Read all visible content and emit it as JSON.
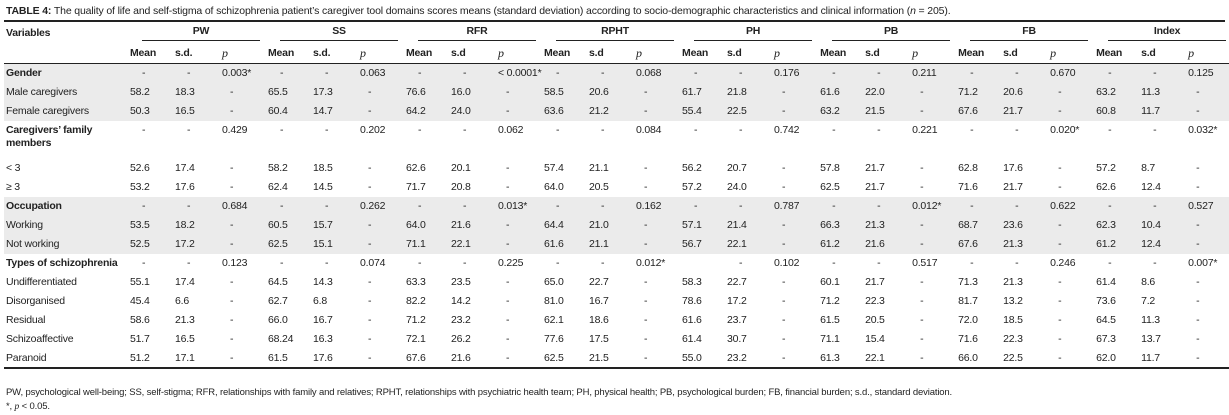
{
  "title": {
    "label": "TABLE 4:",
    "text": "The quality of life and self-stigma of schizophrenia patient’s caregiver tool domains scores means (standard deviation) according to socio-demographic characteristics and clinical information (",
    "n_symbol": "n",
    "n_value": " = 205)."
  },
  "header": {
    "variables": "Variables",
    "groups": [
      "PW",
      "SS",
      "RFR",
      "RPHT",
      "PH",
      "PB",
      "FB",
      "Index"
    ],
    "subcols": [
      [
        "Mean",
        "s.d.",
        "p"
      ],
      [
        "Mean",
        "s.d.",
        "p"
      ],
      [
        "Mean",
        "s.d",
        "p"
      ],
      [
        "Mean",
        "s.d",
        "p"
      ],
      [
        "Mean",
        "s.d",
        "p"
      ],
      [
        "Mean",
        "s.d",
        "p"
      ],
      [
        "Mean",
        "s.d",
        "p"
      ],
      [
        "Mean",
        "s.d",
        "p"
      ]
    ]
  },
  "rows": [
    {
      "label": "Gender",
      "category": true,
      "shade": true,
      "cells": [
        "-",
        "-",
        "0.003*",
        "-",
        "-",
        "0.063",
        "-",
        "-",
        "< 0.0001*",
        "-",
        "-",
        "0.068",
        "-",
        "-",
        "0.176",
        "-",
        "-",
        "0.211",
        "-",
        "-",
        "0.670",
        "-",
        "-",
        "0.125"
      ]
    },
    {
      "label": "Male caregivers",
      "category": false,
      "shade": true,
      "cells": [
        "58.2",
        "18.3",
        "-",
        "65.5",
        "17.3",
        "-",
        "76.6",
        "16.0",
        "-",
        "58.5",
        "20.6",
        "-",
        "61.7",
        "21.8",
        "-",
        "61.6",
        "22.0",
        "-",
        "71.2",
        "20.6",
        "-",
        "63.2",
        "11.3",
        "-"
      ]
    },
    {
      "label": "Female caregivers",
      "category": false,
      "shade": true,
      "cells": [
        "50.3",
        "16.5",
        "-",
        "60.4",
        "14.7",
        "-",
        "64.2",
        "24.0",
        "-",
        "63.6",
        "21.2",
        "-",
        "55.4",
        "22.5",
        "-",
        "63.2",
        "21.5",
        "-",
        "67.6",
        "21.7",
        "-",
        "60.8",
        "11.7",
        "-"
      ]
    },
    {
      "label": "Caregivers’ family members",
      "category": true,
      "shade": false,
      "cells": [
        "-",
        "-",
        "0.429",
        "-",
        "-",
        "0.202",
        "-",
        "-",
        "0.062",
        "-",
        "-",
        "0.084",
        "-",
        "-",
        "0.742",
        "-",
        "-",
        "0.221",
        "-",
        "-",
        "0.020*",
        "-",
        "-",
        "0.032*"
      ]
    },
    {
      "label": "< 3",
      "category": false,
      "shade": false,
      "cells": [
        "52.6",
        "17.4",
        "-",
        "58.2",
        "18.5",
        "-",
        "62.6",
        "20.1",
        "-",
        "57.4",
        "21.1",
        "-",
        "56.2",
        "20.7",
        "-",
        "57.8",
        "21.7",
        "-",
        "62.8",
        "17.6",
        "-",
        "57.2",
        "8.7",
        "-"
      ]
    },
    {
      "label": "≥ 3",
      "category": false,
      "shade": false,
      "cells": [
        "53.2",
        "17.6",
        "-",
        "62.4",
        "14.5",
        "-",
        "71.7",
        "20.8",
        "-",
        "64.0",
        "20.5",
        "-",
        "57.2",
        "24.0",
        "-",
        "62.5",
        "21.7",
        "-",
        "71.6",
        "21.7",
        "-",
        "62.6",
        "12.4",
        "-"
      ]
    },
    {
      "label": "Occupation",
      "category": true,
      "shade": true,
      "cells": [
        "-",
        "-",
        "0.684",
        "-",
        "-",
        "0.262",
        "-",
        "-",
        "0.013*",
        "-",
        "-",
        "0.162",
        "-",
        "-",
        "0.787",
        "-",
        "-",
        "0.012*",
        "-",
        "-",
        "0.622",
        "-",
        "-",
        "0.527"
      ]
    },
    {
      "label": "Working",
      "category": false,
      "shade": true,
      "cells": [
        "53.5",
        "18.2",
        "-",
        "60.5",
        "15.7",
        "-",
        "64.0",
        "21.6",
        "-",
        "64.4",
        "21.0",
        "-",
        "57.1",
        "21.4",
        "-",
        "66.3",
        "21.3",
        "-",
        "68.7",
        "23.6",
        "-",
        "62.3",
        "10.4",
        "-"
      ]
    },
    {
      "label": "Not working",
      "category": false,
      "shade": true,
      "cells": [
        "52.5",
        "17.2",
        "-",
        "62.5",
        "15.1",
        "-",
        "71.1",
        "22.1",
        "-",
        "61.6",
        "21.1",
        "-",
        "56.7",
        "22.1",
        "-",
        "61.2",
        "21.6",
        "-",
        "67.6",
        "21.3",
        "-",
        "61.2",
        "12.4",
        "-"
      ]
    },
    {
      "label": "Types of schizophrenia",
      "category": true,
      "shade": false,
      "cells": [
        "-",
        "-",
        "0.123",
        "-",
        "-",
        "0.074",
        "-",
        "-",
        "0.225",
        "-",
        "-",
        "0.012*",
        "",
        "-",
        "0.102",
        "-",
        "-",
        "0.517",
        "-",
        "-",
        "0.246",
        "-",
        "-",
        "0.007*"
      ]
    },
    {
      "label": "Undifferentiated",
      "category": false,
      "shade": false,
      "cells": [
        "55.1",
        "17.4",
        "-",
        "64.5",
        "14.3",
        "-",
        "63.3",
        "23.5",
        "-",
        "65.0",
        "22.7",
        "-",
        "58.3",
        "22.7",
        "-",
        "60.1",
        "21.7",
        "-",
        "71.3",
        "21.3",
        "-",
        "61.4",
        "8.6",
        "-"
      ]
    },
    {
      "label": "Disorganised",
      "category": false,
      "shade": false,
      "cells": [
        "45.4",
        "6.6",
        "-",
        "62.7",
        "6.8",
        "-",
        "82.2",
        "14.2",
        "-",
        "81.0",
        "16.7",
        "-",
        "78.6",
        "17.2",
        "-",
        "71.2",
        "22.3",
        "-",
        "81.7",
        "13.2",
        "-",
        "73.6",
        "7.2",
        "-"
      ]
    },
    {
      "label": "Residual",
      "category": false,
      "shade": false,
      "cells": [
        "58.6",
        "21.3",
        "-",
        "66.0",
        "16.7",
        "-",
        "71.2",
        "23.2",
        "-",
        "62.1",
        "18.6",
        "-",
        "61.6",
        "23.7",
        "-",
        "61.5",
        "20.5",
        "-",
        "72.0",
        "18.5",
        "-",
        "64.5",
        "11.3",
        "-"
      ]
    },
    {
      "label": "Schizoaffective",
      "category": false,
      "shade": false,
      "cells": [
        "51.7",
        "16.5",
        "-",
        "68.24",
        "16.3",
        "-",
        "72.1",
        "26.2",
        "-",
        "77.6",
        "17.5",
        "-",
        "61.4",
        "30.7",
        "-",
        "71.1",
        "15.4",
        "-",
        "71.6",
        "22.3",
        "-",
        "67.3",
        "13.7",
        "-"
      ]
    },
    {
      "label": "Paranoid",
      "category": false,
      "shade": false,
      "cells": [
        "51.2",
        "17.1",
        "-",
        "61.5",
        "17.6",
        "-",
        "67.6",
        "21.6",
        "-",
        "62.5",
        "21.5",
        "-",
        "55.0",
        "23.2",
        "-",
        "61.3",
        "22.1",
        "-",
        "66.0",
        "22.5",
        "-",
        "62.0",
        "11.7",
        "-"
      ]
    }
  ],
  "footnotes": {
    "abbreviations": "PW, psychological well-being; SS, self-stigma; RFR, relationships with family and relatives; RPHT, relationships with psychiatric health team; PH, physical health; PB, psychological burden; FB, financial burden; s.d., standard deviation.",
    "significance_symbol": "*, ",
    "significance_p": "p",
    "significance_text": " < 0.05."
  }
}
